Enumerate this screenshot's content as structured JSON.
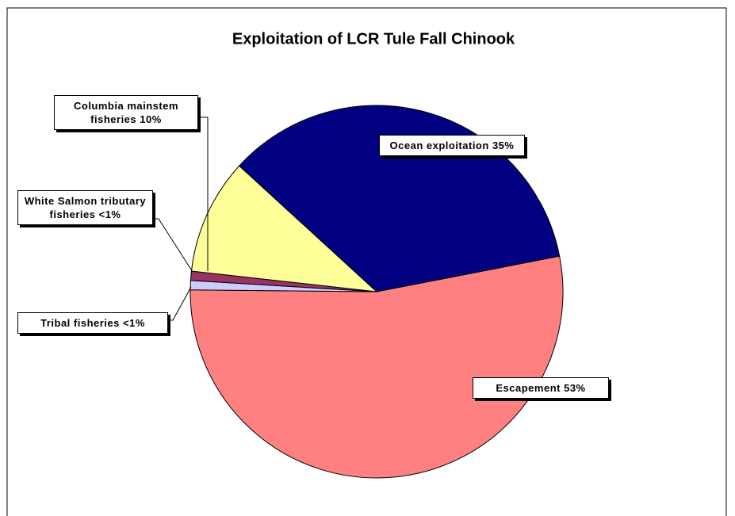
{
  "chart_data": {
    "type": "pie",
    "title": "Exploitation of LCR Tule Fall Chinook",
    "categories": [
      "Escapement",
      "Tribal fisheries",
      "White Salmon tributary fisheries",
      "Columbia mainstem fisheries",
      "Ocean exploitation"
    ],
    "values": [
      53,
      0.8,
      0.8,
      10,
      35
    ],
    "value_labels": [
      "53%",
      "<1%",
      "<1%",
      "10%",
      "35%"
    ],
    "colors": [
      "#ff8080",
      "#ccccff",
      "#993366",
      "#ffff99",
      "#000080"
    ]
  }
}
